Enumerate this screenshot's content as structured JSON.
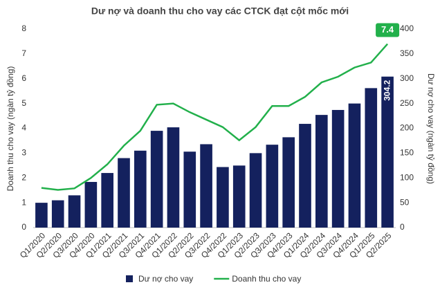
{
  "chart_data": {
    "type": "combo",
    "title": "Dư nợ và doanh thu cho vay các CTCK đạt cột mốc mới",
    "y_label": "Doanh thu cho vay (ngàn tỷ đồng)",
    "y2_label": "Dư nợ cho vay (ngàn tỷ đồng)",
    "categories": [
      "Q1/2020",
      "Q2/2020",
      "Q3/2020",
      "Q4/2020",
      "Q1/2021",
      "Q2/2021",
      "Q3/2021",
      "Q4/2021",
      "Q1/2022",
      "Q2/2022",
      "Q3/2022",
      "Q4/2022",
      "Q1/2023",
      "Q2/2023",
      "Q3/2023",
      "Q4/2023",
      "Q1/2024",
      "Q2/2024",
      "Q3/2024",
      "Q4/2024",
      "Q1/2025",
      "Q2/2025"
    ],
    "series": [
      {
        "name": "Dư nợ cho vay",
        "type": "bar",
        "axis": "y2",
        "color": "#14215e",
        "values": [
          50,
          55,
          65,
          92,
          110,
          140,
          155,
          195,
          202,
          153,
          168,
          122,
          125,
          150,
          167,
          182,
          209,
          227,
          237,
          250,
          281,
          304.2
        ]
      },
      {
        "name": "Doanh thu cho vay",
        "type": "line",
        "axis": "y",
        "color": "#22b04b",
        "values": [
          1.6,
          1.52,
          1.58,
          2.0,
          2.55,
          3.3,
          3.9,
          4.95,
          5.0,
          4.65,
          4.35,
          4.05,
          3.52,
          4.05,
          4.9,
          4.9,
          5.27,
          5.85,
          6.08,
          6.45,
          6.65,
          7.4
        ]
      }
    ],
    "ylim": [
      0,
      8
    ],
    "yticks": [
      0,
      1,
      2,
      3,
      4,
      5,
      6,
      7,
      8
    ],
    "y2lim": [
      0,
      400
    ],
    "y2ticks": [
      0,
      50,
      100,
      150,
      200,
      250,
      300,
      350,
      400
    ],
    "grid": false,
    "legend": "bottom"
  }
}
